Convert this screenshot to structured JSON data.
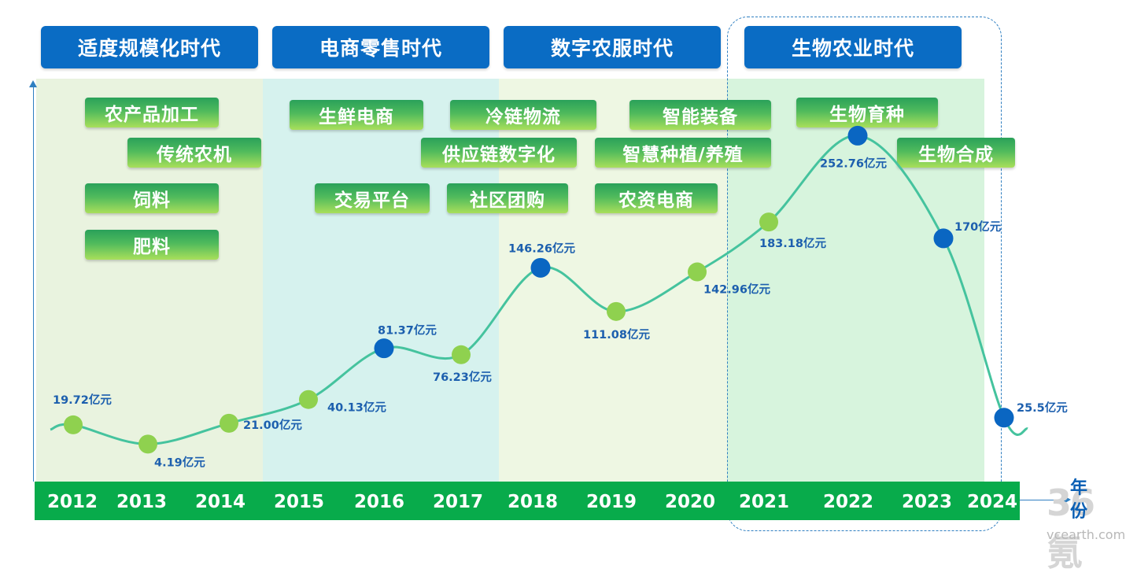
{
  "eras": [
    {
      "name": "适度规模化时代",
      "bg": "#e9f3df"
    },
    {
      "name": "电商零售时代",
      "bg": "#d6f2ee"
    },
    {
      "name": "数字农服时代",
      "bg": "#eef7e3"
    },
    {
      "name": "生物农业时代",
      "bg": "#d7f4dd"
    }
  ],
  "tags": {
    "era1": [
      "农产品加工",
      "传统农机",
      "饲料",
      "肥料"
    ],
    "era2": [
      "生鲜电商",
      "交易平台"
    ],
    "era2_3": [
      "冷链物流",
      "供应链数字化",
      "社区团购"
    ],
    "era3": [
      "智能装备",
      "智慧种植/养殖",
      "农资电商"
    ],
    "era4": [
      "生物育种",
      "生物合成"
    ]
  },
  "x_unit": "年份",
  "watermark": {
    "mark": "36氪",
    "url": "vcearth.com"
  },
  "colors": {
    "header": "#0a6cc4",
    "axis_bar": "#08ab4b",
    "line": "#45c39e",
    "point_green": "#8fd14f",
    "point_blue": "#0a66c2",
    "label": "#1c5fae"
  },
  "chart_data": {
    "type": "line",
    "title": "",
    "xlabel": "年份",
    "ylabel": "",
    "unit": "亿元",
    "categories": [
      "2012",
      "2013",
      "2014",
      "2015",
      "2016",
      "2017",
      "2018",
      "2019",
      "2020",
      "2021",
      "2022",
      "2023",
      "2024"
    ],
    "values": [
      19.72,
      4.19,
      21.0,
      40.13,
      81.37,
      76.23,
      146.26,
      111.08,
      142.96,
      183.18,
      252.76,
      170,
      25.5
    ],
    "labels": [
      "19.72亿元",
      "4.19亿元",
      "21.00亿元",
      "40.13亿元",
      "81.37亿元",
      "76.23亿元",
      "146.26亿元",
      "111.08亿元",
      "142.96亿元",
      "183.18亿元",
      "252.76亿元",
      "170亿元",
      "25.5亿元"
    ],
    "highlight": [
      "green",
      "green",
      "green",
      "green",
      "blue",
      "green",
      "blue",
      "green",
      "green",
      "green",
      "blue",
      "blue",
      "blue"
    ],
    "smooth": true,
    "grid": false,
    "legend": "none"
  }
}
